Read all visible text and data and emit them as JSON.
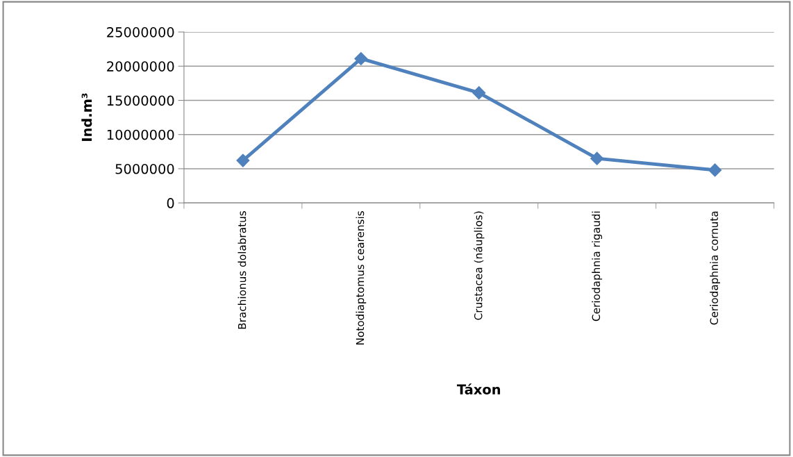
{
  "chart_data": {
    "type": "line",
    "xlabel": "Táxon",
    "ylabel": "Ind.m³",
    "categories": [
      "Brachionus dolabratus",
      "Notodiaptomus cearensis",
      "Crustacea (náuplios)",
      "Ceriodaphnia rigaudi",
      "Ceriodaphnia cornuta"
    ],
    "series": [
      {
        "color": "#4f81bd",
        "values": [
          6200000,
          21100000,
          16100000,
          6500000,
          4800000
        ]
      }
    ],
    "ylim": [
      0,
      25000000
    ],
    "yticks": [
      0,
      5000000,
      10000000,
      15000000,
      20000000,
      25000000
    ],
    "grid": "y",
    "marker": "diamond",
    "line_style": "solid",
    "legend": false
  }
}
